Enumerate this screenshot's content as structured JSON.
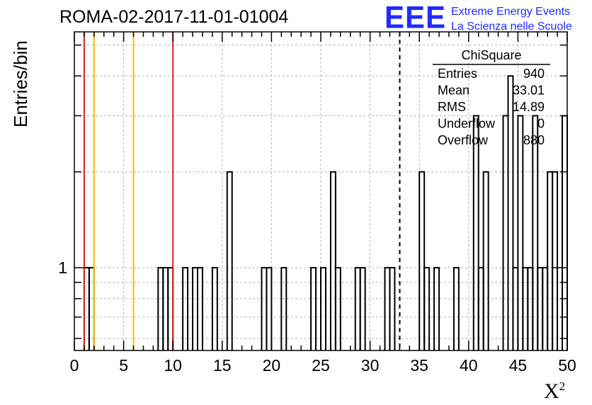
{
  "header": {
    "title": "ROMA-02-2017-11-01-01004"
  },
  "logo": {
    "mark": "EEE",
    "line1": "Extreme Energy Events",
    "line2": "La Scienza nelle Scuole",
    "color": "#1f2bff"
  },
  "stats_box": {
    "title": "ChiSquare",
    "rows": [
      {
        "label": "Entries",
        "value": "940"
      },
      {
        "label": "Mean",
        "value": "33.01"
      },
      {
        "label": "RMS",
        "value": "14.89"
      },
      {
        "label": "Underflow",
        "value": "0"
      },
      {
        "label": "Overflow",
        "value": "880"
      }
    ]
  },
  "chart_data": {
    "type": "histogram",
    "xlabel": "X",
    "xlabel_superscript": "2",
    "ylabel": "Entries/bin",
    "xlim": [
      0,
      50
    ],
    "ylim": [
      0.55,
      5.5
    ],
    "log_y": true,
    "grid": true,
    "x_ticks": [
      "0",
      "5",
      "10",
      "15",
      "20",
      "25",
      "30",
      "35",
      "40",
      "45",
      "50"
    ],
    "y_tick_labels": [
      {
        "value": 1,
        "label": "1"
      }
    ],
    "bin_width": 0.5,
    "bins": [
      {
        "x": 1.0,
        "count": 1
      },
      {
        "x": 1.5,
        "count": 1
      },
      {
        "x": 8.5,
        "count": 1
      },
      {
        "x": 9.0,
        "count": 1
      },
      {
        "x": 9.5,
        "count": 1
      },
      {
        "x": 11.0,
        "count": 1
      },
      {
        "x": 12.0,
        "count": 1
      },
      {
        "x": 12.5,
        "count": 1
      },
      {
        "x": 14.0,
        "count": 1
      },
      {
        "x": 15.5,
        "count": 2
      },
      {
        "x": 19.0,
        "count": 1
      },
      {
        "x": 19.5,
        "count": 1
      },
      {
        "x": 21.0,
        "count": 1
      },
      {
        "x": 24.0,
        "count": 1
      },
      {
        "x": 25.0,
        "count": 1
      },
      {
        "x": 26.0,
        "count": 2
      },
      {
        "x": 26.5,
        "count": 1
      },
      {
        "x": 28.5,
        "count": 1
      },
      {
        "x": 29.0,
        "count": 1
      },
      {
        "x": 31.5,
        "count": 1
      },
      {
        "x": 32.0,
        "count": 1
      },
      {
        "x": 35.0,
        "count": 2
      },
      {
        "x": 35.5,
        "count": 1
      },
      {
        "x": 36.5,
        "count": 1
      },
      {
        "x": 38.5,
        "count": 1
      },
      {
        "x": 40.5,
        "count": 3
      },
      {
        "x": 41.0,
        "count": 1
      },
      {
        "x": 41.5,
        "count": 2
      },
      {
        "x": 43.5,
        "count": 3
      },
      {
        "x": 44.0,
        "count": 4
      },
      {
        "x": 44.5,
        "count": 1
      },
      {
        "x": 45.0,
        "count": 3
      },
      {
        "x": 45.5,
        "count": 1
      },
      {
        "x": 46.0,
        "count": 1
      },
      {
        "x": 46.5,
        "count": 3
      },
      {
        "x": 47.0,
        "count": 1
      },
      {
        "x": 47.5,
        "count": 1
      },
      {
        "x": 48.0,
        "count": 2
      },
      {
        "x": 48.5,
        "count": 2
      },
      {
        "x": 49.5,
        "count": 3
      }
    ],
    "vertical_lines": [
      {
        "x": 1.0,
        "color": "#e0201c",
        "style": "solid"
      },
      {
        "x": 2.0,
        "color": "#f0c000",
        "style": "solid"
      },
      {
        "x": 6.0,
        "color": "#f0c000",
        "style": "solid"
      },
      {
        "x": 10.0,
        "color": "#e0201c",
        "style": "solid"
      },
      {
        "x": 33.01,
        "color": "#000000",
        "style": "dashed"
      }
    ]
  }
}
